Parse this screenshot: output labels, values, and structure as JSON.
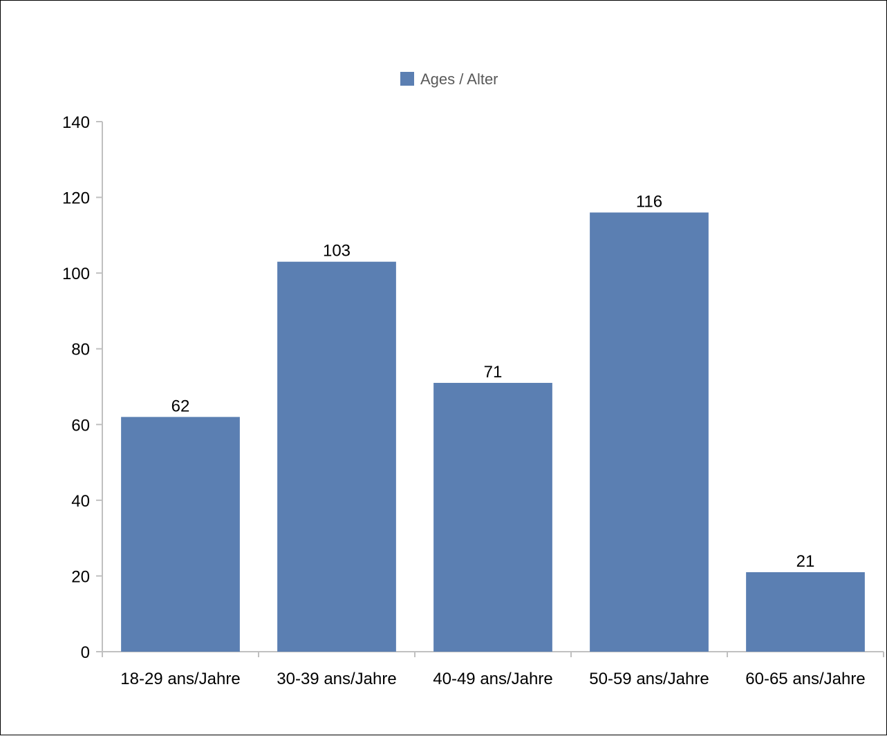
{
  "chart_data": {
    "type": "bar",
    "categories": [
      "18-29 ans/Jahre",
      "30-39 ans/Jahre",
      "40-49 ans/Jahre",
      "50-59 ans/Jahre",
      "60-65 ans/Jahre"
    ],
    "series": [
      {
        "name": "Ages / Alter",
        "values": [
          62,
          103,
          71,
          116,
          21
        ]
      }
    ],
    "ylim": [
      0,
      140
    ],
    "yticks": [
      0,
      20,
      40,
      60,
      80,
      100,
      120,
      140
    ],
    "grid": false,
    "legend_position": "top-center",
    "data_labels": true,
    "colors": {
      "bar": "#5b7fb2",
      "axis": "#c0c0c0"
    }
  }
}
